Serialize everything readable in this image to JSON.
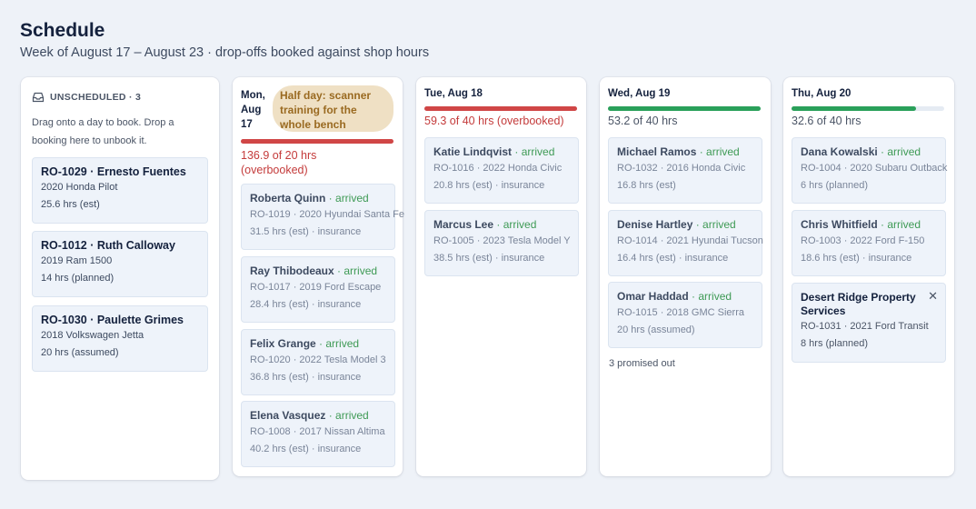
{
  "header": {
    "title": "Schedule",
    "subtitle": "Week of August 17 – August 23 · drop-offs booked against shop hours"
  },
  "unscheduled": {
    "icon": "inbox-icon",
    "label": "UNSCHEDULED · 3",
    "help": "Drag onto a day to book. Drop a booking here to unbook it.",
    "cards": [
      {
        "title": "RO-1029 · Ernesto Fuentes",
        "vehicle": "2020 Honda Pilot",
        "hours": "25.6 hrs (est)"
      },
      {
        "title": "RO-1012 · Ruth Calloway",
        "vehicle": "2019 Ram 1500",
        "hours": "14 hrs (planned)"
      },
      {
        "title": "RO-1030 · Paulette Grimes",
        "vehicle": "2018 Volkswagen Jetta",
        "hours": "20 hrs (assumed)"
      }
    ]
  },
  "days": {
    "mon": {
      "date": "Mon, Aug 17",
      "note": "Half day: scanner training for the whole bench",
      "load": "136.9 of 20 hrs (overbooked)",
      "load_fraction": 1.0,
      "bar_color": "#d04646",
      "cards": [
        {
          "name": "Roberta Quinn",
          "status": "arrived",
          "detail": "RO-1019 · 2020 Hyundai Santa Fe",
          "hours": "31.5 hrs (est) · insurance"
        },
        {
          "name": "Ray Thibodeaux",
          "status": "arrived",
          "detail": "RO-1017 · 2019 Ford Escape",
          "hours": "28.4 hrs (est) · insurance"
        },
        {
          "name": "Felix Grange",
          "status": "arrived",
          "detail": "RO-1020 · 2022 Tesla Model 3",
          "hours": "36.8 hrs (est) · insurance"
        },
        {
          "name": "Elena Vasquez",
          "status": "arrived",
          "detail": "RO-1008 · 2017 Nissan Altima",
          "hours": "40.2 hrs (est) · insurance"
        }
      ]
    },
    "tue": {
      "date": "Tue, Aug 18",
      "load": "59.3 of 40 hrs (overbooked)",
      "load_fraction": 1.0,
      "bar_color": "#d04646",
      "cards": [
        {
          "name": "Katie Lindqvist",
          "status": "arrived",
          "detail": "RO-1016 · 2022 Honda Civic",
          "hours": "20.8 hrs (est) · insurance"
        },
        {
          "name": "Marcus Lee",
          "status": "arrived",
          "detail": "RO-1005 · 2023 Tesla Model Y",
          "hours": "38.5 hrs (est) · insurance"
        }
      ]
    },
    "wed": {
      "date": "Wed, Aug 19",
      "load": "53.2 of 40 hrs",
      "load_fraction": 1.0,
      "bar_color": "#2aa05a",
      "promised": "3 promised out",
      "cards": [
        {
          "name": "Michael Ramos",
          "status": "arrived",
          "detail": "RO-1032 · 2016 Honda Civic",
          "hours": "16.8 hrs (est)"
        },
        {
          "name": "Denise Hartley",
          "status": "arrived",
          "detail": "RO-1014 · 2021 Hyundai Tucson",
          "hours": "16.4 hrs (est) · insurance"
        },
        {
          "name": "Omar Haddad",
          "status": "arrived",
          "detail": "RO-1015 · 2018 GMC Sierra",
          "hours": "20 hrs (assumed)"
        }
      ]
    },
    "thu": {
      "date": "Thu, Aug 20",
      "load": "32.6 of 40 hrs",
      "load_fraction": 0.815,
      "bar_color": "#2aa05a",
      "cards": [
        {
          "name": "Dana Kowalski",
          "status": "arrived",
          "detail": "RO-1004 · 2020 Subaru Outback",
          "hours": "6 hrs (planned)"
        },
        {
          "name": "Chris Whitfield",
          "status": "arrived",
          "detail": "RO-1003 · 2022 Ford F-150",
          "hours": "18.6 hrs (est) · insurance"
        }
      ],
      "fleet_card": {
        "name": "Desert Ridge Property Services",
        "detail": "RO-1031 · 2021 Ford Transit",
        "hours": "8 hrs (planned)",
        "close": "✕"
      }
    }
  }
}
